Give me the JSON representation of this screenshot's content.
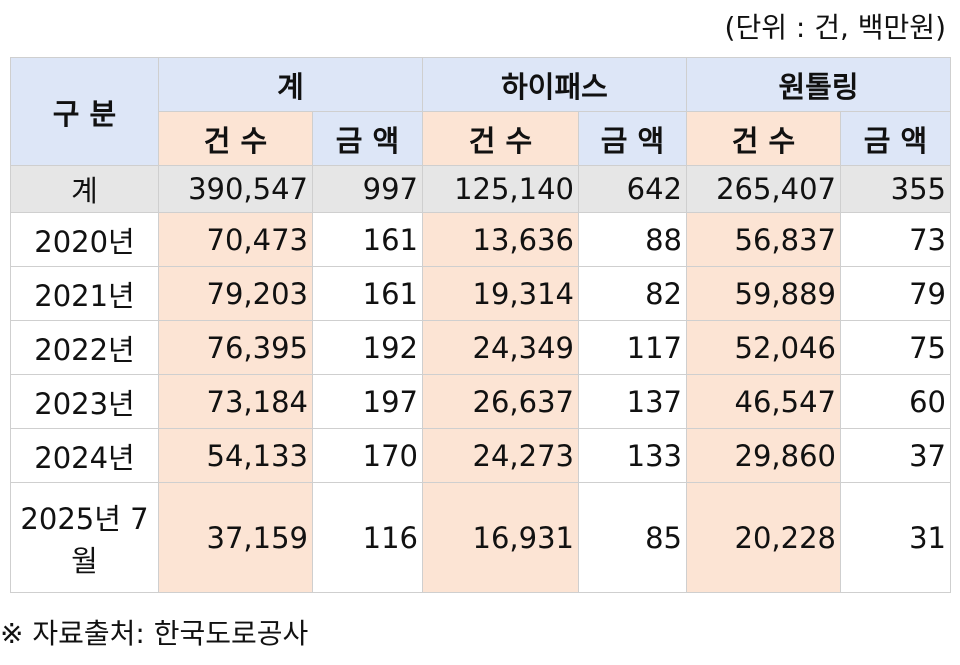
{
  "header": {
    "unit": "(단위 : 건, 백만원)"
  },
  "table": {
    "group_header": [
      "구 분",
      "계",
      "하이패스",
      "원톨링"
    ],
    "sub_header": [
      "건 수",
      "금 액",
      "건 수",
      "금 액",
      "건 수",
      "금 액"
    ],
    "rows": [
      [
        "계",
        "390,547",
        "997",
        "125,140",
        "642",
        "265,407",
        "355"
      ],
      [
        "2020년",
        "70,473",
        "161",
        "13,636",
        "88",
        "56,837",
        "73"
      ],
      [
        "2021년",
        "79,203",
        "161",
        "19,314",
        "82",
        "59,889",
        "79"
      ],
      [
        "2022년",
        "76,395",
        "192",
        "24,349",
        "117",
        "52,046",
        "75"
      ],
      [
        "2023년",
        "73,184",
        "197",
        "26,637",
        "137",
        "46,547",
        "60"
      ],
      [
        "2024년",
        "54,133",
        "170",
        "24,273",
        "133",
        "29,860",
        "37"
      ],
      [
        "2025년 7월",
        "37,159",
        "116",
        "16,931",
        "85",
        "20,228",
        "31"
      ]
    ]
  },
  "footer": {
    "source": "※ 자료출처: 한국도로공사"
  }
}
